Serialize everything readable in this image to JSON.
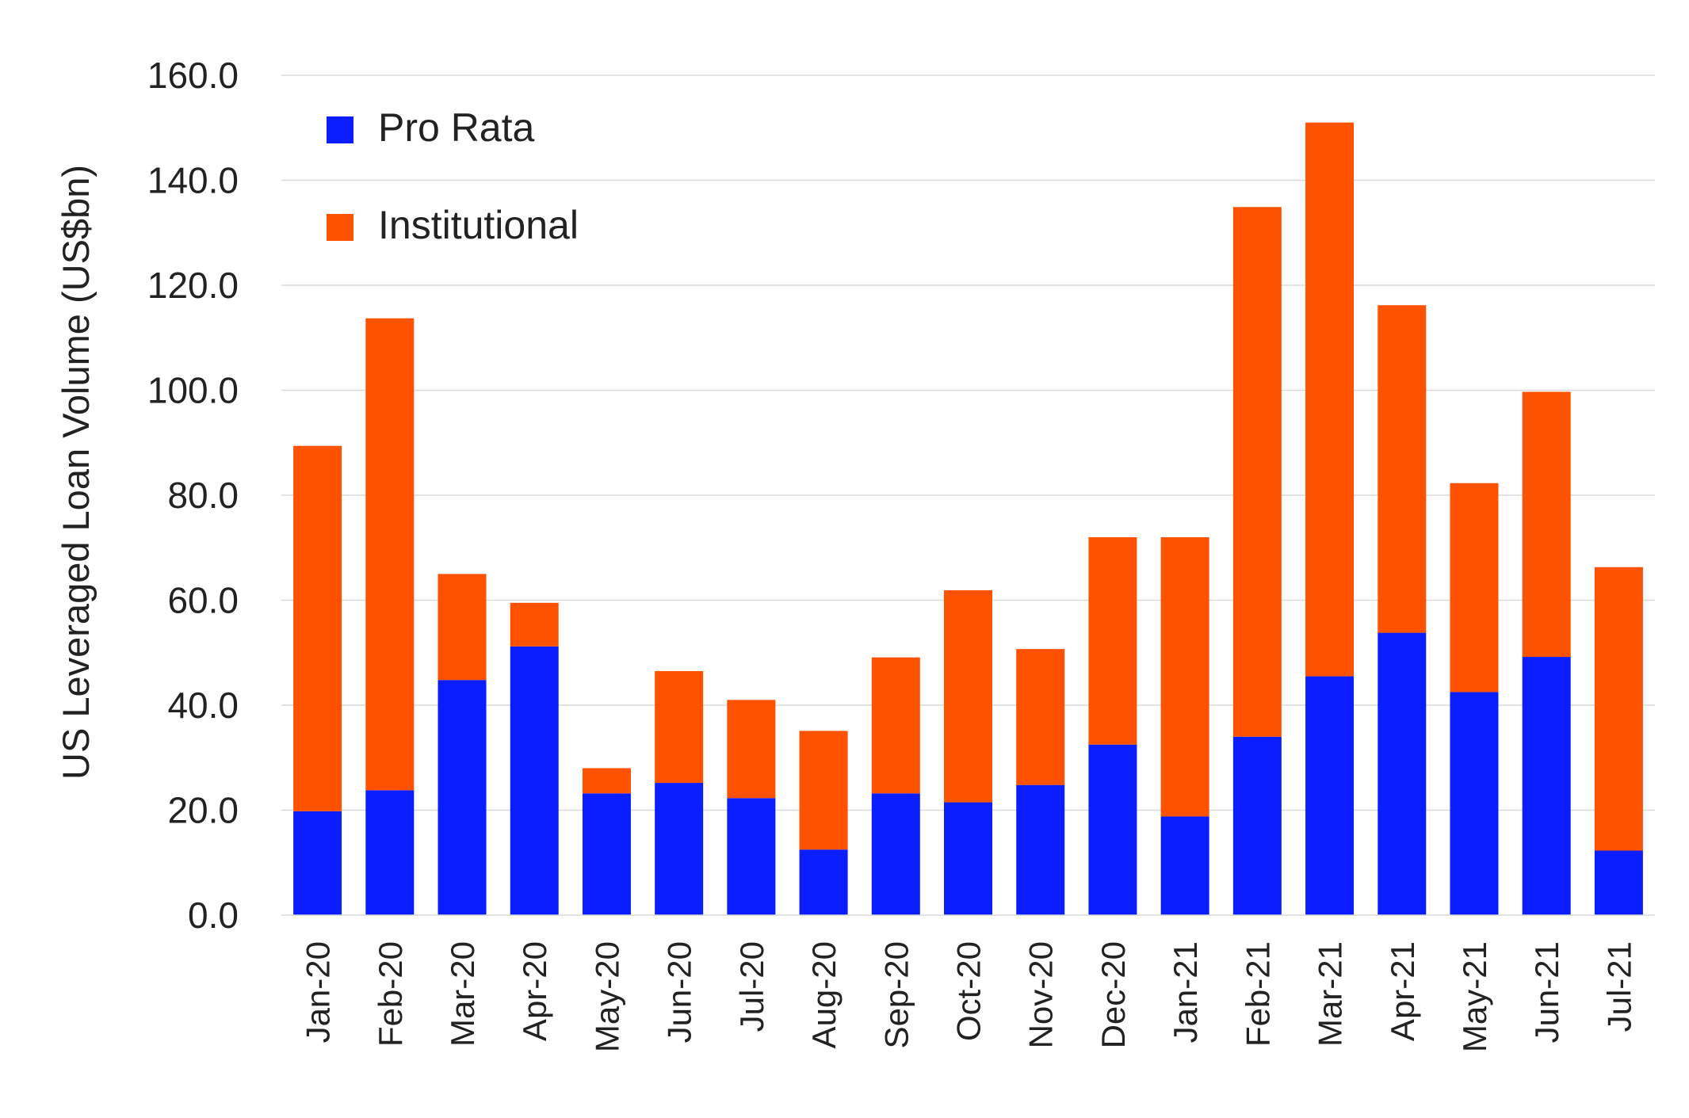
{
  "chart_data": {
    "type": "bar",
    "stacked": true,
    "title": "",
    "xlabel": "",
    "ylabel": "US Leveraged Loan Volume (US$bn)",
    "ylim": [
      0,
      160
    ],
    "yticks": [
      "0.0",
      "20.0",
      "40.0",
      "60.0",
      "80.0",
      "100.0",
      "120.0",
      "140.0",
      "160.0"
    ],
    "grid": true,
    "legend_position": "top-left",
    "categories": [
      "Jan-20",
      "Feb-20",
      "Mar-20",
      "Apr-20",
      "May-20",
      "Jun-20",
      "Jul-20",
      "Aug-20",
      "Sep-20",
      "Oct-20",
      "Nov-20",
      "Dec-20",
      "Jan-21",
      "Feb-21",
      "Mar-21",
      "Apr-21",
      "May-21",
      "Jun-21",
      "Jul-21"
    ],
    "series": [
      {
        "name": "Pro Rata",
        "color": "#0a1eff",
        "values": [
          19.8,
          23.8,
          44.8,
          51.2,
          23.2,
          25.2,
          22.3,
          12.5,
          23.2,
          21.5,
          24.8,
          32.5,
          18.8,
          34.0,
          45.5,
          53.8,
          42.5,
          49.2,
          12.3
        ]
      },
      {
        "name": "Institutional",
        "color": "#ff5200",
        "values": [
          69.6,
          89.9,
          20.2,
          8.3,
          4.8,
          21.3,
          18.7,
          22.6,
          25.9,
          40.4,
          25.9,
          39.5,
          53.2,
          100.9,
          105.5,
          62.4,
          39.8,
          50.5,
          54.0
        ]
      }
    ]
  }
}
